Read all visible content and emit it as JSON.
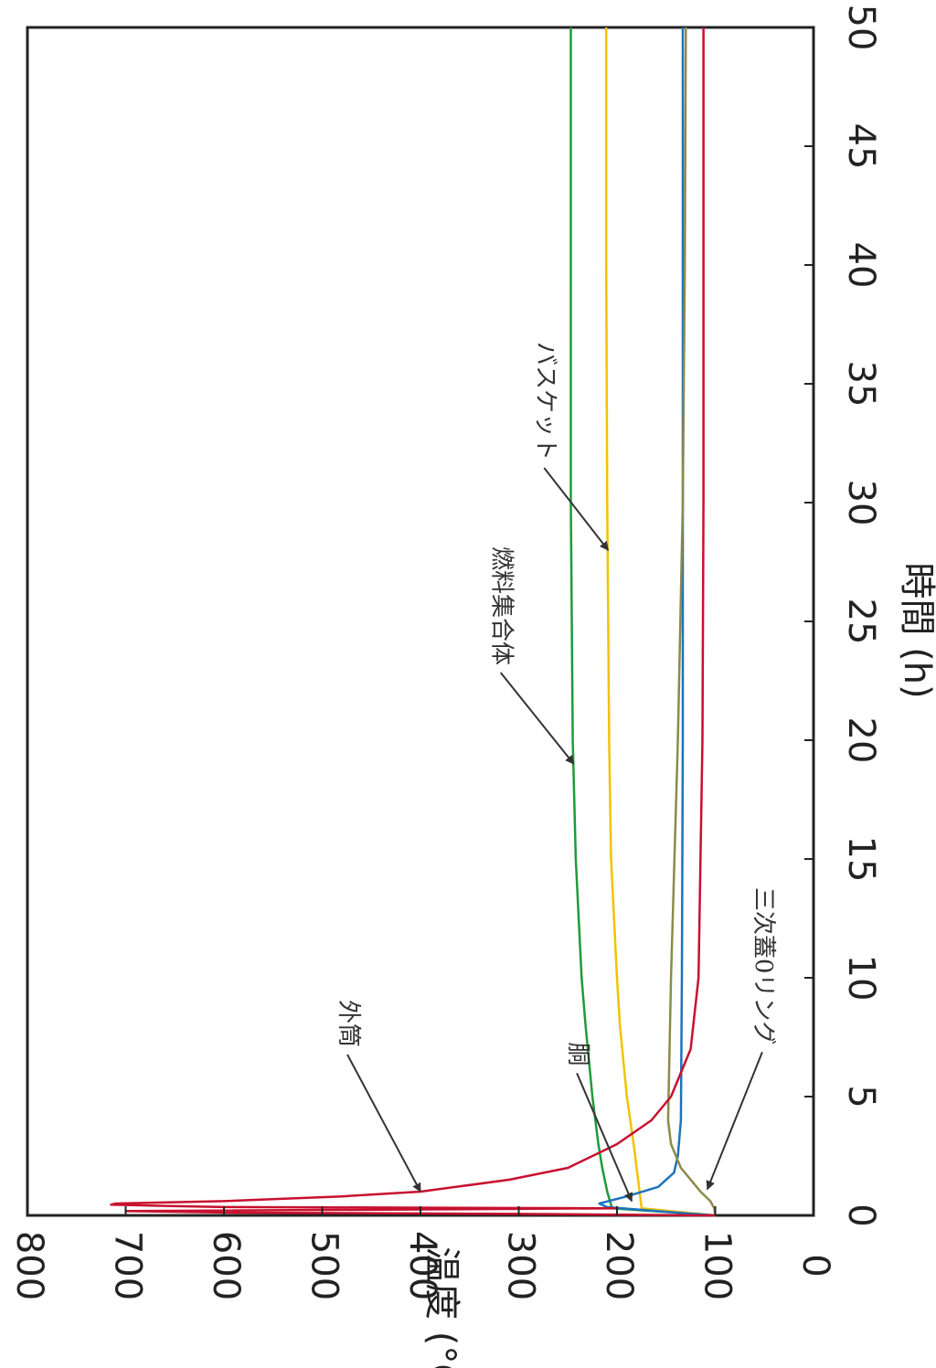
{
  "chart_data": {
    "type": "line",
    "orientation": "rotated-90-clockwise",
    "xlabel": "時間 (h)",
    "ylabel": "温度 (°C)",
    "xlim": [
      0,
      50
    ],
    "ylim": [
      0,
      800
    ],
    "x_ticks": [
      "0",
      "5",
      "10",
      "15",
      "20",
      "25",
      "30",
      "35",
      "40",
      "45",
      "50"
    ],
    "y_ticks": [
      "0",
      "100",
      "200",
      "300",
      "400",
      "500",
      "600",
      "700",
      "800"
    ],
    "grid": false,
    "series": [
      {
        "name": "燃料集合体",
        "color": "#1f9a3a",
        "points": [
          [
            0,
            100
          ],
          [
            0.3,
            205
          ],
          [
            1,
            210
          ],
          [
            2,
            215
          ],
          [
            3,
            219
          ],
          [
            5,
            225
          ],
          [
            8,
            232
          ],
          [
            10,
            236
          ],
          [
            15,
            242
          ],
          [
            20,
            245
          ],
          [
            30,
            247
          ],
          [
            40,
            247
          ],
          [
            50,
            247
          ]
        ]
      },
      {
        "name": "バスケット",
        "color": "#f2c200",
        "points": [
          [
            0,
            100
          ],
          [
            0.3,
            175
          ],
          [
            1,
            177
          ],
          [
            2,
            180
          ],
          [
            3,
            183
          ],
          [
            5,
            190
          ],
          [
            8,
            197
          ],
          [
            10,
            200
          ],
          [
            15,
            206
          ],
          [
            20,
            208
          ],
          [
            30,
            210
          ],
          [
            40,
            211
          ],
          [
            50,
            211
          ]
        ]
      },
      {
        "name": "胴",
        "color": "#1e73be",
        "points": [
          [
            0,
            100
          ],
          [
            0.15,
            150
          ],
          [
            0.35,
            210
          ],
          [
            0.5,
            218
          ],
          [
            0.8,
            190
          ],
          [
            1.2,
            158
          ],
          [
            1.8,
            142
          ],
          [
            2.5,
            138
          ],
          [
            4,
            135
          ],
          [
            10,
            134
          ],
          [
            20,
            133
          ],
          [
            50,
            133
          ]
        ]
      },
      {
        "name": "三次蓋0リング",
        "color": "#8c8a4a",
        "points": [
          [
            0,
            100
          ],
          [
            0.3,
            101
          ],
          [
            0.6,
            105
          ],
          [
            1,
            115
          ],
          [
            2,
            135
          ],
          [
            3,
            145
          ],
          [
            4,
            148
          ],
          [
            10,
            145
          ],
          [
            20,
            138
          ],
          [
            30,
            133
          ],
          [
            40,
            131
          ],
          [
            50,
            130
          ]
        ]
      },
      {
        "name": "外筒",
        "color": "#c8102e",
        "points": [
          [
            0,
            100
          ],
          [
            0.06,
            300
          ],
          [
            0.12,
            600
          ],
          [
            0.18,
            700
          ],
          [
            0.25,
            400
          ],
          [
            0.3,
            200
          ],
          [
            0.35,
            600
          ],
          [
            0.4,
            660
          ],
          [
            0.45,
            715
          ],
          [
            0.5,
            710
          ],
          [
            0.6,
            600
          ],
          [
            0.8,
            480
          ],
          [
            1,
            400
          ],
          [
            1.5,
            310
          ],
          [
            2,
            250
          ],
          [
            3,
            200
          ],
          [
            4,
            165
          ],
          [
            5,
            145
          ],
          [
            7,
            125
          ],
          [
            10,
            117
          ],
          [
            20,
            113
          ],
          [
            30,
            112
          ],
          [
            50,
            112
          ]
        ]
      }
    ],
    "annotations": [
      {
        "text": "外筒",
        "x": 1.0,
        "y": 400
      },
      {
        "text": "胴",
        "x": 0.6,
        "y": 185
      },
      {
        "text": "三次蓋0リング",
        "x": 1.1,
        "y": 108
      },
      {
        "text": "燃料集合体",
        "x": 19,
        "y": 244
      },
      {
        "text": "バスケット",
        "x": 28,
        "y": 209
      }
    ]
  }
}
